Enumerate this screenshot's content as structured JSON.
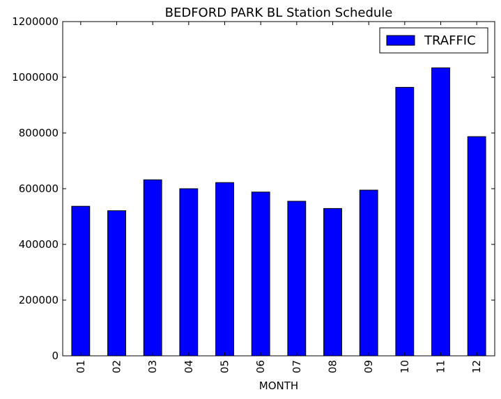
{
  "chart_data": {
    "type": "bar",
    "title": "BEDFORD PARK BL Station Schedule",
    "xlabel": "MONTH",
    "ylabel": "",
    "categories": [
      "01",
      "02",
      "03",
      "04",
      "05",
      "06",
      "07",
      "08",
      "09",
      "10",
      "11",
      "12"
    ],
    "series": [
      {
        "name": "TRAFFIC",
        "color": "#0000ff",
        "values": [
          537000,
          521000,
          632000,
          600000,
          622000,
          588000,
          555000,
          529000,
          595000,
          964000,
          1034000,
          787000
        ]
      }
    ],
    "ylim": [
      0,
      1200000
    ],
    "yticks": [
      "0",
      "200000",
      "400000",
      "600000",
      "800000",
      "1000000",
      "1200000"
    ],
    "legend": "top-right",
    "grid": false
  }
}
